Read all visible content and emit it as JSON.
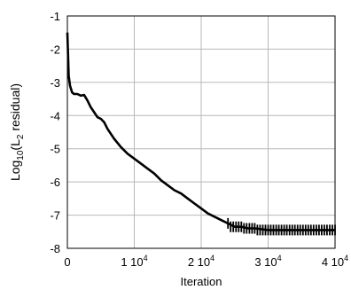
{
  "chart_data": {
    "type": "line",
    "title": "",
    "xlabel": "Iteration",
    "ylabel_parts": {
      "log": "Log",
      "base": "10",
      "open": "(L",
      "sub": "2",
      "rest": " residual)"
    },
    "xlim": [
      0,
      40000
    ],
    "ylim": [
      -8,
      -1
    ],
    "x_ticks": [
      {
        "value": 0,
        "label": "0",
        "exp": ""
      },
      {
        "value": 10000,
        "label": "1 10",
        "exp": "4"
      },
      {
        "value": 20000,
        "label": "2 10",
        "exp": "4"
      },
      {
        "value": 30000,
        "label": "3 10",
        "exp": "4"
      },
      {
        "value": 40000,
        "label": "4 10",
        "exp": "4"
      }
    ],
    "y_ticks": [
      {
        "value": -1,
        "label": "-1"
      },
      {
        "value": -2,
        "label": "-2"
      },
      {
        "value": -3,
        "label": "-3"
      },
      {
        "value": -4,
        "label": "-4"
      },
      {
        "value": -5,
        "label": "-5"
      },
      {
        "value": -6,
        "label": "-6"
      },
      {
        "value": -7,
        "label": "-7"
      },
      {
        "value": -8,
        "label": "-8"
      }
    ],
    "grid": true,
    "series": [
      {
        "color": "#000000",
        "x": [
          0,
          100,
          200,
          400,
          700,
          1000,
          1500,
          2000,
          2500,
          3000,
          3500,
          4000,
          4500,
          5000,
          5500,
          6000,
          7000,
          8000,
          9000,
          10000,
          11000,
          12000,
          13000,
          14000,
          15000,
          16000,
          17000,
          18000,
          19000,
          20000,
          21000,
          22000,
          23000,
          24000,
          25000,
          26000,
          27000,
          28000,
          30000,
          32000,
          34000,
          36000,
          38000,
          40000
        ],
        "y": [
          -1.5,
          -2.2,
          -2.8,
          -3.1,
          -3.3,
          -3.35,
          -3.35,
          -3.4,
          -3.38,
          -3.55,
          -3.75,
          -3.9,
          -4.05,
          -4.1,
          -4.2,
          -4.4,
          -4.7,
          -4.95,
          -5.15,
          -5.3,
          -5.45,
          -5.6,
          -5.75,
          -5.95,
          -6.1,
          -6.25,
          -6.35,
          -6.5,
          -6.65,
          -6.8,
          -6.95,
          -7.05,
          -7.15,
          -7.25,
          -7.35,
          -7.35,
          -7.4,
          -7.4,
          -7.45,
          -7.45,
          -7.45,
          -7.45,
          -7.45,
          -7.45
        ]
      }
    ]
  }
}
